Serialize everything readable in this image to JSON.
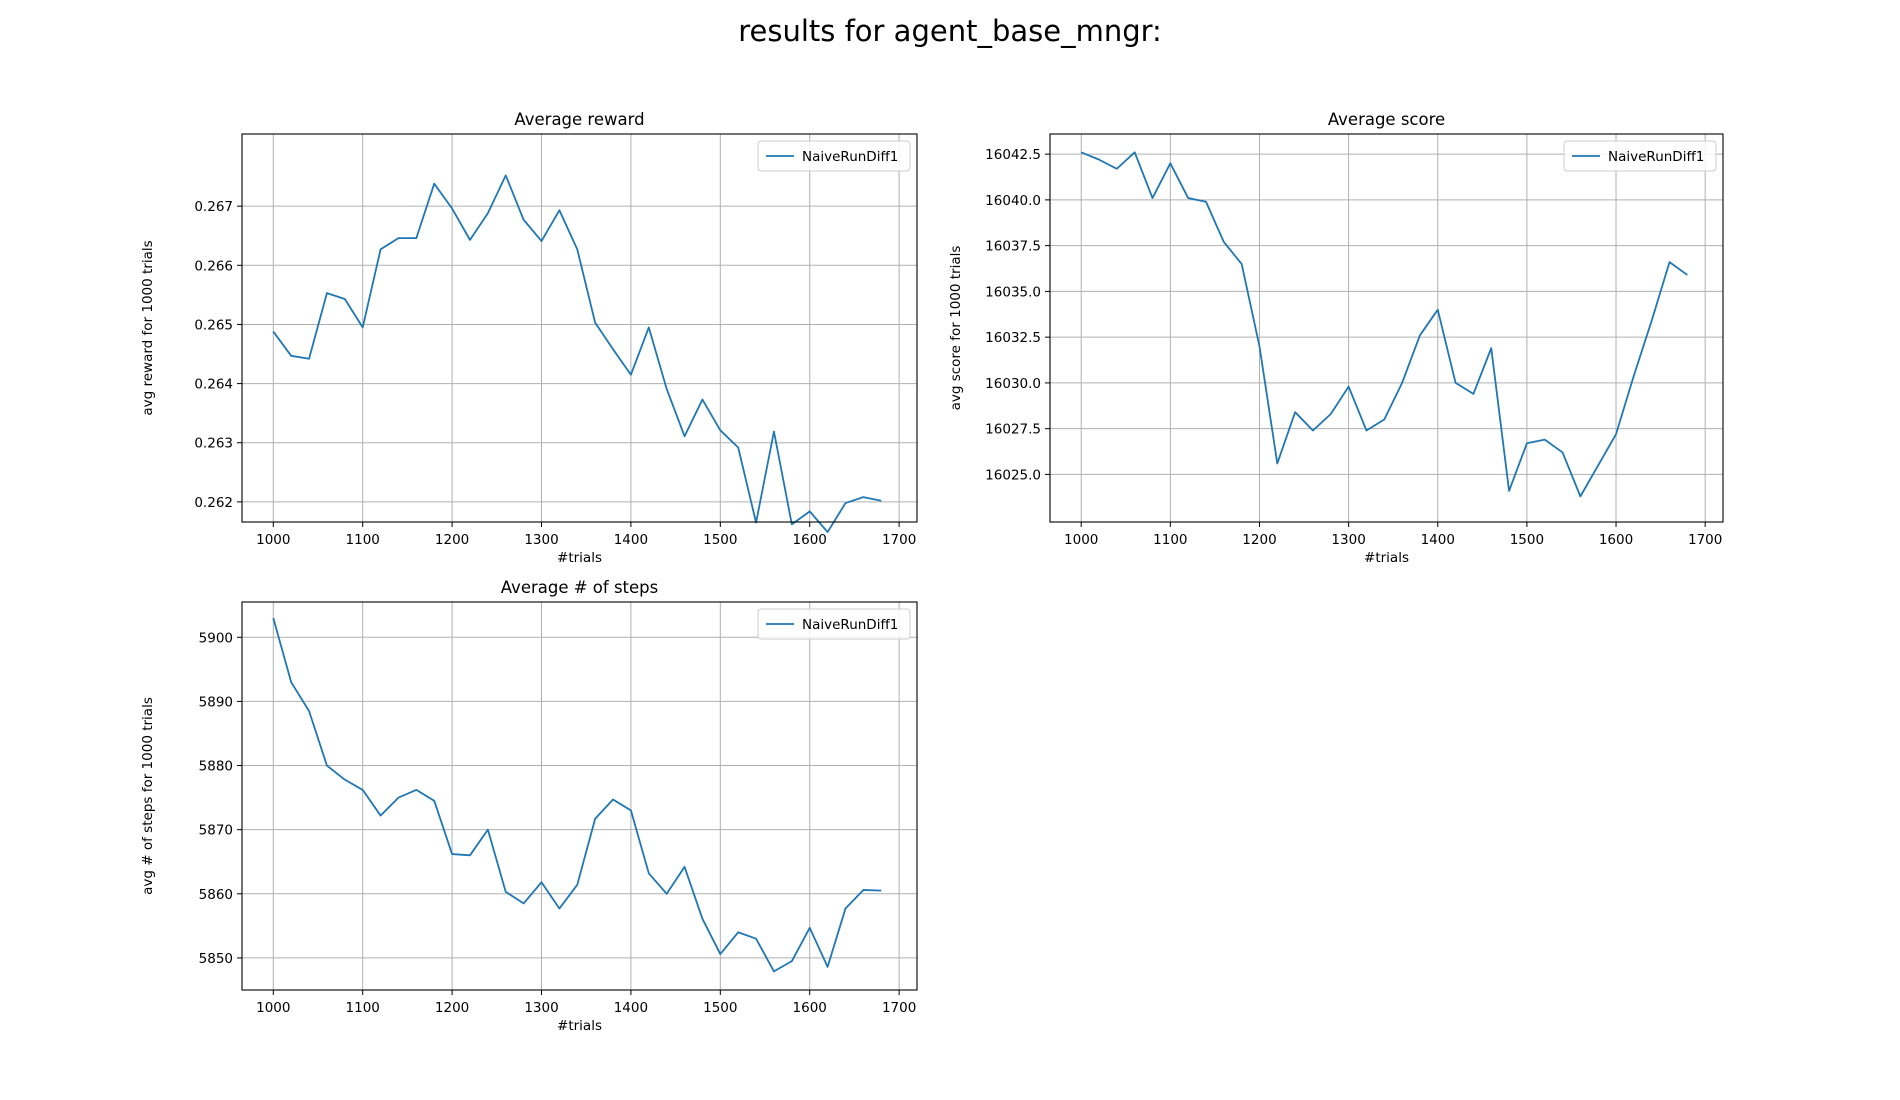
{
  "figure": {
    "suptitle": "results for agent_base_mngr:"
  },
  "colors": {
    "series": "#1f77b4",
    "grid": "#b0b0b0",
    "axes": "#000000"
  },
  "chart_data": [
    {
      "type": "line",
      "title": "Average reward",
      "xlabel": "#trials",
      "ylabel": "avg reward for 1000 trials",
      "xlim": [
        965,
        1720
      ],
      "ylim": [
        0.26166,
        0.26822
      ],
      "xticks": [
        1000,
        1100,
        1200,
        1300,
        1400,
        1500,
        1600,
        1700
      ],
      "yticks": [
        0.262,
        0.263,
        0.264,
        0.265,
        0.266,
        0.267
      ],
      "ytick_labels": [
        "0.262",
        "0.263",
        "0.264",
        "0.265",
        "0.266",
        "0.267"
      ],
      "grid": true,
      "legend_position": "upper right",
      "series": [
        {
          "name": "NaiveRunDiff1",
          "x": [
            1000,
            1020,
            1040,
            1060,
            1080,
            1100,
            1120,
            1140,
            1160,
            1180,
            1200,
            1220,
            1240,
            1260,
            1280,
            1300,
            1320,
            1340,
            1360,
            1380,
            1400,
            1420,
            1440,
            1460,
            1480,
            1500,
            1520,
            1540,
            1560,
            1580,
            1600,
            1620,
            1640,
            1660,
            1680
          ],
          "y": [
            0.26488,
            0.26447,
            0.26442,
            0.26553,
            0.26543,
            0.26495,
            0.26627,
            0.26646,
            0.26646,
            0.26738,
            0.26696,
            0.26643,
            0.26688,
            0.26752,
            0.26677,
            0.26641,
            0.26693,
            0.26627,
            0.26503,
            0.26458,
            0.26415,
            0.26495,
            0.26391,
            0.26311,
            0.26373,
            0.26321,
            0.26292,
            0.26165,
            0.26319,
            0.26162,
            0.26184,
            0.26149,
            0.26198,
            0.26208,
            0.26202
          ]
        }
      ]
    },
    {
      "type": "line",
      "title": "Average score",
      "xlabel": "#trials",
      "ylabel": "avg score for 1000 trials",
      "xlim": [
        965,
        1720
      ],
      "ylim": [
        16022.4,
        16043.6
      ],
      "xticks": [
        1000,
        1100,
        1200,
        1300,
        1400,
        1500,
        1600,
        1700
      ],
      "yticks": [
        16025.0,
        16027.5,
        16030.0,
        16032.5,
        16035.0,
        16037.5,
        16040.0,
        16042.5
      ],
      "ytick_labels": [
        "16025.0",
        "16027.5",
        "16030.0",
        "16032.5",
        "16035.0",
        "16037.5",
        "16040.0",
        "16042.5"
      ],
      "grid": true,
      "legend_position": "upper right",
      "series": [
        {
          "name": "NaiveRunDiff1",
          "x": [
            1000,
            1020,
            1040,
            1060,
            1080,
            1100,
            1120,
            1140,
            1160,
            1180,
            1200,
            1220,
            1240,
            1260,
            1280,
            1300,
            1320,
            1340,
            1360,
            1380,
            1400,
            1420,
            1440,
            1460,
            1480,
            1500,
            1520,
            1540,
            1560,
            1580,
            1600,
            1620,
            1640,
            1660,
            1680
          ],
          "y": [
            16042.6,
            16042.2,
            16041.7,
            16042.6,
            16040.1,
            16042.0,
            16040.1,
            16039.9,
            16037.7,
            16036.5,
            16032.0,
            16025.6,
            16028.4,
            16027.4,
            16028.3,
            16029.8,
            16027.4,
            16028.0,
            16030.0,
            16032.6,
            16034.0,
            16030.0,
            16029.4,
            16031.9,
            16024.1,
            16026.7,
            16026.9,
            16026.2,
            16023.8,
            16025.5,
            16027.2,
            16030.4,
            16033.4,
            16036.6,
            16035.9
          ]
        }
      ]
    },
    {
      "type": "line",
      "title": "Average # of steps",
      "xlabel": "#trials",
      "ylabel": "avg # of steps for 1000 trials",
      "xlim": [
        965,
        1720
      ],
      "ylim": [
        5845,
        5905.5
      ],
      "xticks": [
        1000,
        1100,
        1200,
        1300,
        1400,
        1500,
        1600,
        1700
      ],
      "yticks": [
        5850,
        5860,
        5870,
        5880,
        5890,
        5900
      ],
      "ytick_labels": [
        "5850",
        "5860",
        "5870",
        "5880",
        "5890",
        "5900"
      ],
      "grid": true,
      "legend_position": "upper right",
      "series": [
        {
          "name": "NaiveRunDiff1",
          "x": [
            1000,
            1020,
            1040,
            1060,
            1080,
            1100,
            1120,
            1140,
            1160,
            1180,
            1200,
            1220,
            1240,
            1260,
            1280,
            1300,
            1320,
            1340,
            1360,
            1380,
            1400,
            1420,
            1440,
            1460,
            1480,
            1500,
            1520,
            1540,
            1560,
            1580,
            1600,
            1620,
            1640,
            1660,
            1680
          ],
          "y": [
            5903,
            5893,
            5888.5,
            5880,
            5877.8,
            5876.2,
            5872.2,
            5875,
            5876.2,
            5874.5,
            5866.2,
            5866,
            5870,
            5860.3,
            5858.5,
            5861.8,
            5857.7,
            5861.4,
            5871.7,
            5874.7,
            5873,
            5863.2,
            5860,
            5864.2,
            5856.1,
            5850.6,
            5854,
            5853,
            5847.9,
            5849.5,
            5854.7,
            5848.6,
            5857.7,
            5860.6,
            5860.5
          ]
        }
      ]
    }
  ]
}
